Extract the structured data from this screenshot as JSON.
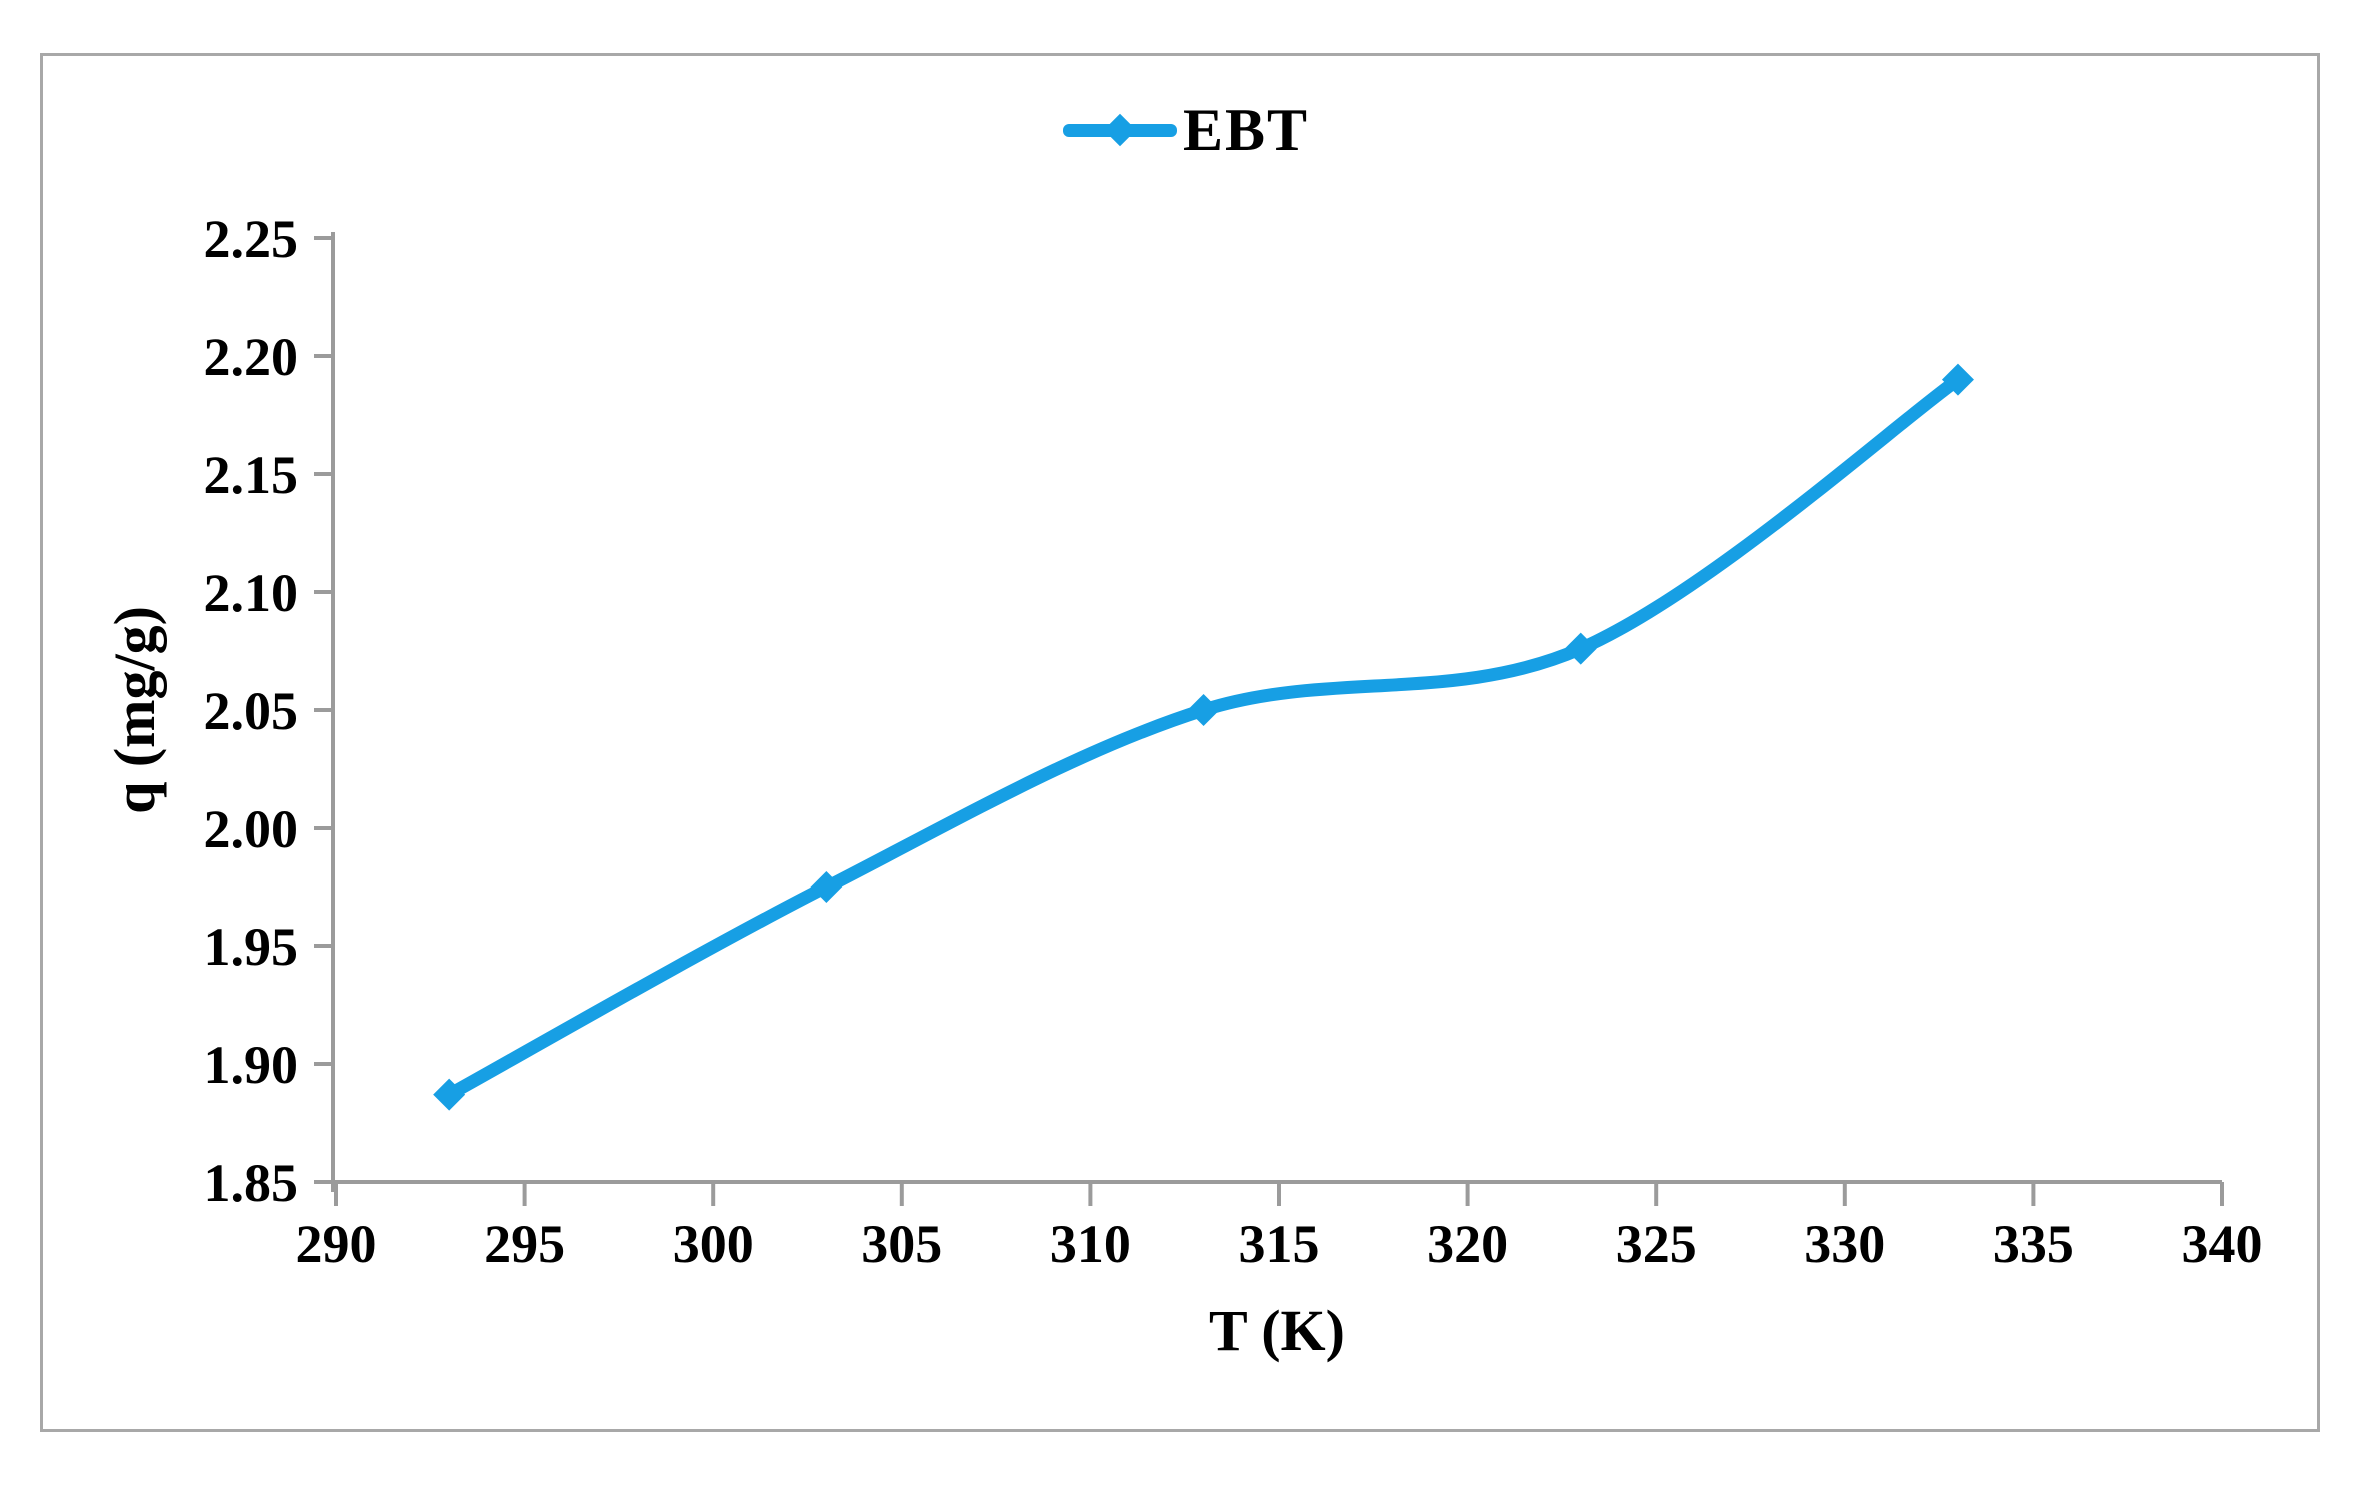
{
  "figure": {
    "background": "#ffffff",
    "frame_color": "#a8a8a8",
    "legend": {
      "label": "EBT"
    }
  },
  "chart_data": {
    "type": "line",
    "title": "",
    "xlabel": "T (K)",
    "ylabel": "q (mg/g)",
    "x": [
      293,
      303,
      313,
      323,
      333
    ],
    "series": [
      {
        "name": "EBT",
        "color": "#179fe4",
        "marker": "diamond",
        "smooth": true,
        "values": [
          1.887,
          1.975,
          2.05,
          2.076,
          2.19
        ]
      }
    ],
    "xlim": [
      290,
      340
    ],
    "ylim": [
      1.85,
      2.25
    ],
    "xticks": [
      290,
      295,
      300,
      305,
      310,
      315,
      320,
      325,
      330,
      335,
      340
    ],
    "yticks": [
      1.85,
      1.9,
      1.95,
      2.0,
      2.05,
      2.1,
      2.15,
      2.2,
      2.25
    ],
    "x_tick_labels": [
      "290",
      "295",
      "300",
      "305",
      "310",
      "315",
      "320",
      "325",
      "330",
      "335",
      "340"
    ],
    "y_tick_labels": [
      "1.85",
      "1.90",
      "1.95",
      "2.00",
      "2.05",
      "2.10",
      "2.15",
      "2.20",
      "2.25"
    ],
    "grid": false,
    "legend_position": "top-center",
    "axis_color": "#9b9b9b",
    "text_color": "#000000"
  }
}
